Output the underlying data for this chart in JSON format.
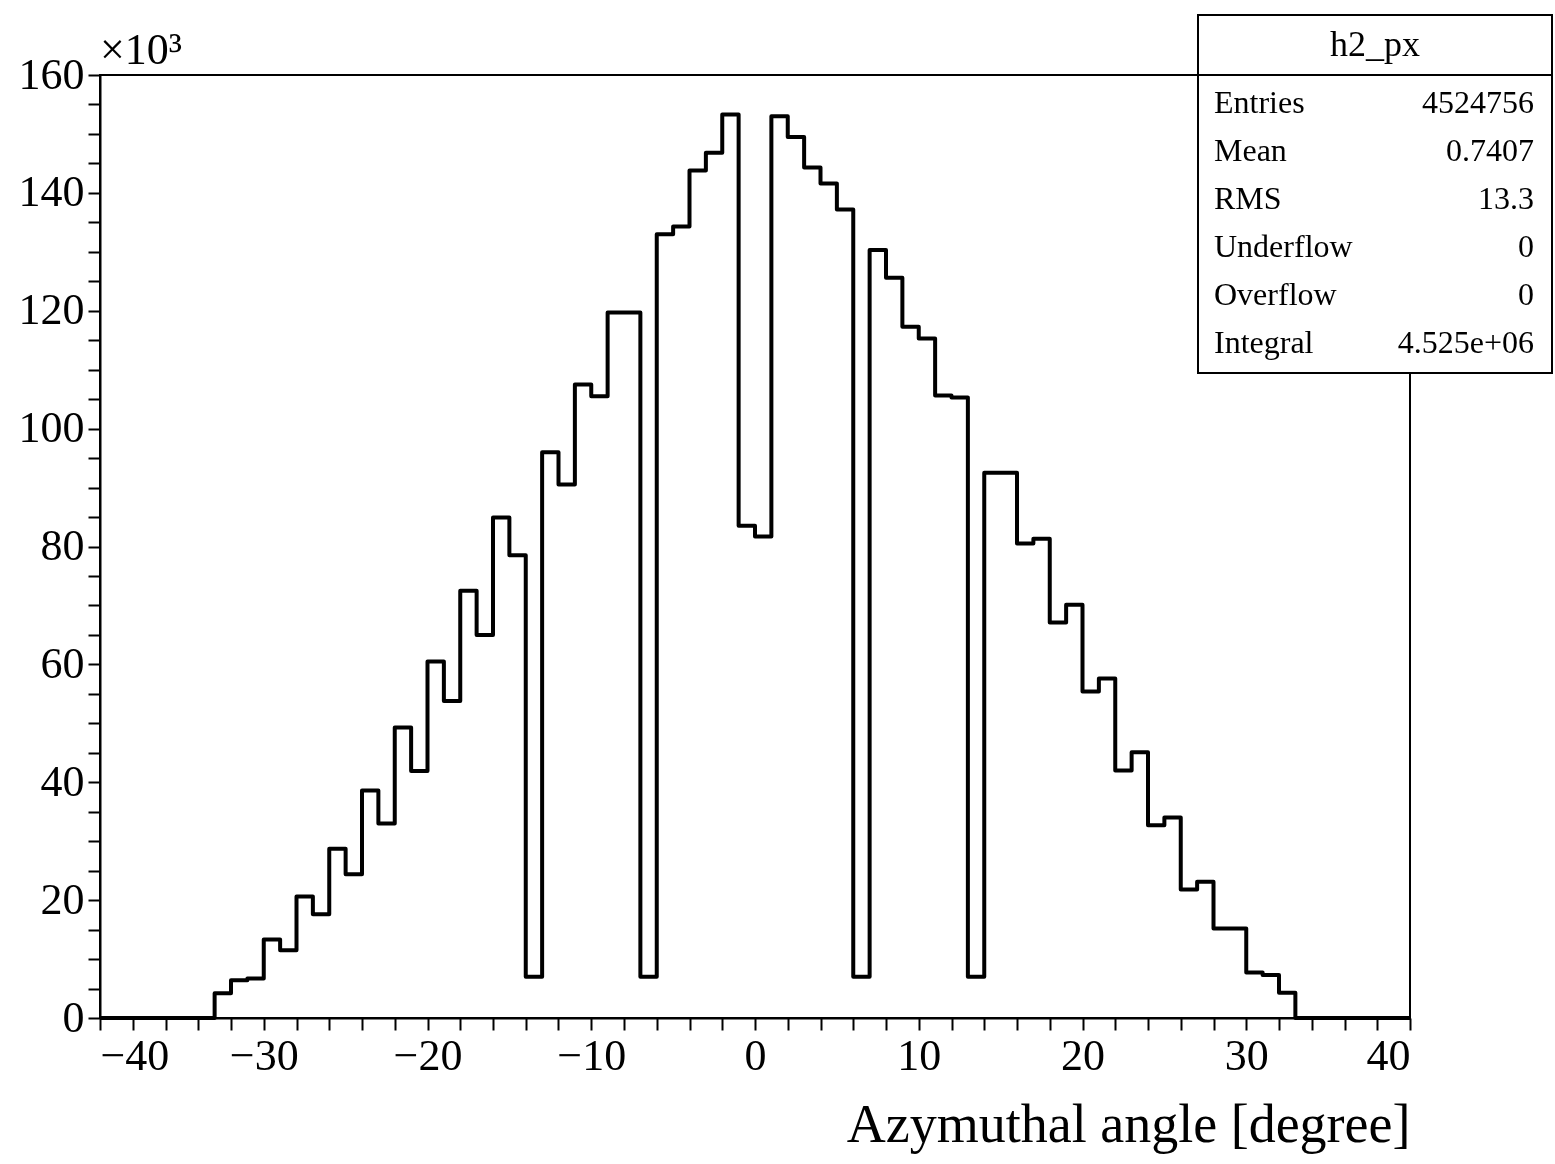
{
  "chart_data": {
    "type": "histogram",
    "xlabel": "Azymuthal angle [degree]",
    "color": "#000000",
    "bins": [
      -40,
      -39,
      -38,
      -37,
      -36,
      -35,
      -34,
      -33,
      -32,
      -31,
      -30,
      -29,
      -28,
      -27,
      -26,
      -25,
      -24,
      -23,
      -22,
      -21,
      -20,
      -19,
      -18,
      -17,
      -16,
      -15,
      -14,
      -13,
      -12,
      -11,
      -10,
      -9,
      -8,
      -7,
      -6,
      -5,
      -4,
      -3,
      -2,
      -1,
      0,
      1,
      2,
      3,
      4,
      5,
      6,
      7,
      8,
      9,
      10,
      11,
      12,
      13,
      14,
      15,
      16,
      17,
      18,
      19,
      20,
      21,
      22,
      23,
      24,
      25,
      26,
      27,
      28,
      29,
      30,
      31,
      32,
      33,
      34,
      35,
      36,
      37,
      38,
      39,
      40
    ],
    "values": [
      0,
      0,
      0,
      0,
      0,
      0,
      0,
      4.2,
      6.4,
      6.7,
      13.3,
      11.5,
      20.6,
      17.6,
      28.7,
      24.4,
      38.6,
      33.0,
      49.3,
      41.9,
      60.5,
      53.8,
      72.5,
      65.0,
      84.9,
      78.5,
      7,
      96,
      90.5,
      107.5,
      105.5,
      119.7,
      119.7,
      7,
      133,
      134.3,
      143.8,
      146.8,
      153.3,
      83.5,
      81.7,
      153,
      149.5,
      144.3,
      141.6,
      137.2,
      7,
      130.3,
      125.6,
      117.3,
      115.3,
      105.6,
      105.3,
      7,
      92.5,
      92.5,
      80.5,
      81.3,
      67.1,
      70.1,
      55.4,
      57.6,
      42.0,
      45.1,
      32.7,
      34.0,
      21.8,
      23.1,
      15.2,
      15.2,
      7.7,
      7.3,
      4.3,
      0,
      0,
      0,
      0,
      0,
      0,
      0
    ],
    "xlim": [
      -40,
      40
    ],
    "xticks": [
      -40,
      {
        "value": -38,
        "label": null
      },
      {
        "value": -36,
        "label": null
      },
      {
        "value": -34,
        "label": null
      },
      {
        "value": -32,
        "label": null
      },
      -30,
      {
        "value": -28,
        "label": null
      },
      {
        "value": -26,
        "label": null
      },
      {
        "value": -24,
        "label": null
      },
      {
        "value": -22,
        "label": null
      },
      -20,
      {
        "value": -18,
        "label": null
      },
      {
        "value": -16,
        "label": null
      },
      {
        "value": -14,
        "label": null
      },
      {
        "value": -12,
        "label": null
      },
      -10,
      {
        "value": -8,
        "label": null
      },
      {
        "value": -6,
        "label": null
      },
      {
        "value": -4,
        "label": null
      },
      {
        "value": -2,
        "label": null
      },
      0,
      {
        "value": 2,
        "label": null
      },
      {
        "value": 4,
        "label": null
      },
      {
        "value": 6,
        "label": null
      },
      {
        "value": 8,
        "label": null
      },
      10,
      {
        "value": 12,
        "label": null
      },
      {
        "value": 14,
        "label": null
      },
      {
        "value": 16,
        "label": null
      },
      {
        "value": 18,
        "label": null
      },
      20,
      {
        "value": 22,
        "label": null
      },
      {
        "value": 24,
        "label": null
      },
      {
        "value": 26,
        "label": null
      },
      {
        "value": 28,
        "label": null
      },
      30,
      {
        "value": 32,
        "label": null
      },
      {
        "value": 34,
        "label": null
      },
      {
        "value": 36,
        "label": null
      },
      {
        "value": 38,
        "label": null
      },
      40
    ],
    "ylim": [
      0,
      160
    ],
    "yticks": [
      0,
      {
        "value": 5,
        "label": null
      },
      {
        "value": 10,
        "label": null
      },
      {
        "value": 15,
        "label": null
      },
      20,
      {
        "value": 25,
        "label": null
      },
      {
        "value": 30,
        "label": null
      },
      {
        "value": 35,
        "label": null
      },
      40,
      {
        "value": 45,
        "label": null
      },
      {
        "value": 50,
        "label": null
      },
      {
        "value": 55,
        "label": null
      },
      60,
      {
        "value": 65,
        "label": null
      },
      {
        "value": 70,
        "label": null
      },
      {
        "value": 75,
        "label": null
      },
      80,
      {
        "value": 85,
        "label": null
      },
      {
        "value": 90,
        "label": null
      },
      {
        "value": 95,
        "label": null
      },
      100,
      {
        "value": 105,
        "label": null
      },
      {
        "value": 110,
        "label": null
      },
      {
        "value": 115,
        "label": null
      },
      120,
      {
        "value": 125,
        "label": null
      },
      {
        "value": 130,
        "label": null
      },
      {
        "value": 135,
        "label": null
      },
      140,
      {
        "value": 145,
        "label": null
      },
      {
        "value": 150,
        "label": null
      },
      {
        "value": 155,
        "label": null
      },
      160
    ],
    "grid": false,
    "annotations": [
      "×10³",
      "h2_px",
      "Entries",
      "4524756",
      "Mean",
      "0.7407",
      "RMS",
      "13.3",
      "Underflow",
      "0",
      "Overflow",
      "0",
      "Integral",
      "4.525e+06"
    ]
  }
}
